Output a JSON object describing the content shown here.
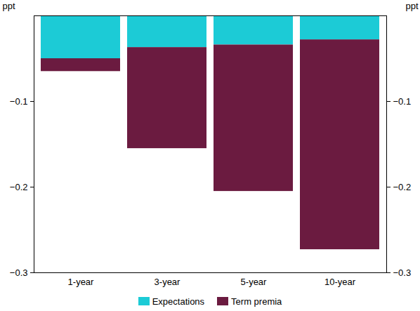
{
  "chart_data": {
    "type": "bar",
    "stacked": true,
    "categories": [
      "1-year",
      "3-year",
      "5-year",
      "10-year"
    ],
    "series": [
      {
        "name": "Expectations",
        "color": "#1ccbd6",
        "values": [
          -0.05,
          -0.037,
          -0.034,
          -0.028
        ]
      },
      {
        "name": "Term premia",
        "color": "#6b1b40",
        "values": [
          -0.015,
          -0.118,
          -0.171,
          -0.245
        ]
      }
    ],
    "y_label": "ppt",
    "ylim": [
      -0.3,
      0
    ],
    "yticks": [
      -0.3,
      -0.2,
      -0.1
    ],
    "grid": false,
    "legend": "bottom"
  }
}
